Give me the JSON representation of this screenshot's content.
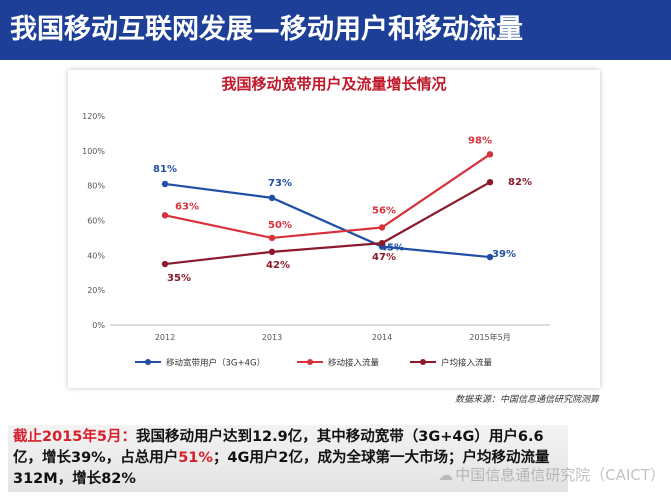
{
  "header": {
    "title": "我国移动互联网发展—移动用户和移动流量"
  },
  "chart_data": {
    "type": "line",
    "title": "我国移动宽带用户及流量增长情况",
    "categories": [
      "2012",
      "2013",
      "2014",
      "2015年5月"
    ],
    "y_ticks": [
      "0%",
      "20%",
      "40%",
      "60%",
      "80%",
      "100%",
      "120%"
    ],
    "ylim": [
      0,
      120
    ],
    "grid": false,
    "legend_position": "bottom",
    "series": [
      {
        "name": "移动宽带用户（3G+4G）",
        "color": "#1f4fa6",
        "values": [
          81,
          73,
          45,
          39
        ],
        "labels": [
          "81%",
          "73%",
          "45%",
          "39%"
        ]
      },
      {
        "name": "移动接入流量",
        "color": "#d8323c",
        "values": [
          63,
          50,
          56,
          98
        ],
        "labels": [
          "63%",
          "50%",
          "56%",
          "98%"
        ]
      },
      {
        "name": "户均接入流量",
        "color": "#8b1a2b",
        "values": [
          35,
          42,
          47,
          82
        ],
        "labels": [
          "35%",
          "42%",
          "47%",
          "82%"
        ]
      }
    ]
  },
  "source_note": "数据来源：中国信息通信研究院测算",
  "summary": {
    "lead": "截止2015年5月",
    "colon": "：",
    "text1": "我国移动用户达到12.9亿，其中移动宽带（3G+4G）用户6.6亿，增长39%，占总用户",
    "pct": "51%",
    "text2": "；4G用户2亿，成为全球第一大市场；户均移动流量312M，增长82%"
  },
  "watermark": {
    "text": "中国信息通信研究院（CAICT）"
  }
}
